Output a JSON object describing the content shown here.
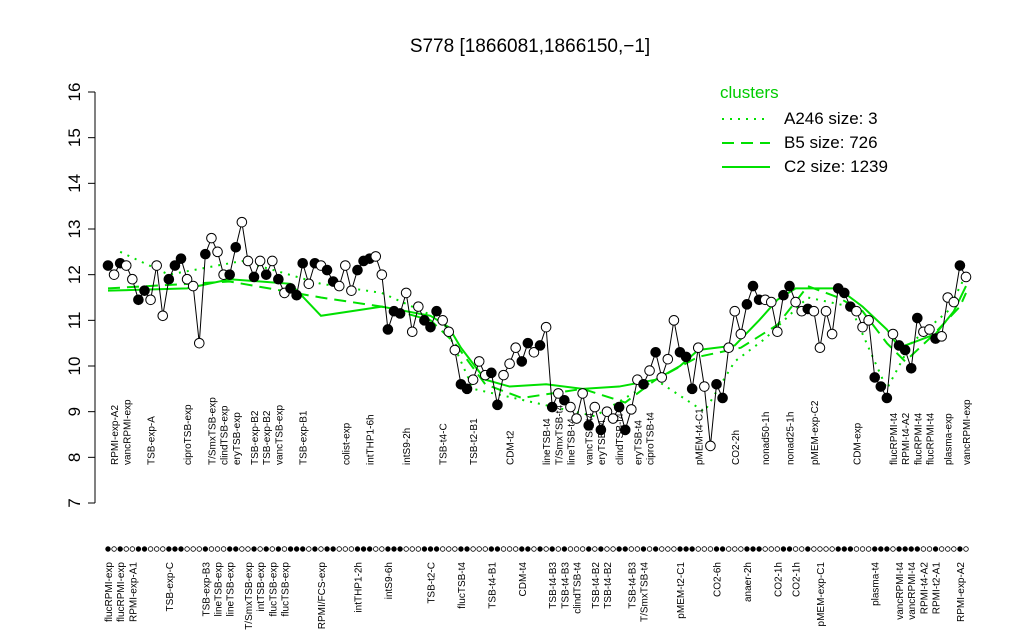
{
  "chart_data": {
    "type": "line",
    "title": "S778 [1866081,1866150,−1]",
    "ylim": [
      7,
      16
    ],
    "yticks": [
      7,
      8,
      9,
      10,
      11,
      12,
      13,
      14,
      15,
      16
    ],
    "categories": [
      "flucRPMI-exp",
      "RPMI-exp-A2",
      "flucRPMI-exp",
      "vancRPMI-exp",
      "RPMI-exp-A1",
      null,
      null,
      "TSB-exp-A",
      null,
      null,
      "TSB-exp-C",
      null,
      null,
      "ciproTSB-exp",
      null,
      null,
      "TSB-exp-B3",
      "T/SmxTSB-exp",
      "lineTSB-exp",
      "clindTSB-exp",
      "lineTSB-exp",
      "eryTSB-exp",
      null,
      "T/SmxTSB-exp",
      "TSB-exp-B2",
      "intTSB-exp",
      "TSB-exp-B2",
      "flucTSB-exp",
      "vancTSB-exp",
      "flucTSB-exp",
      null,
      null,
      "TSB-exp-B1",
      null,
      null,
      "RPMI/FCS-exp",
      null,
      null,
      null,
      "colist-exp",
      null,
      "intTHP1-2h",
      null,
      "intTHP1-6h",
      null,
      null,
      "intS9-6h",
      null,
      null,
      "intS9-2h",
      null,
      null,
      null,
      "TSB-t2-C",
      null,
      "TSB-t4-C",
      null,
      null,
      "flucTSB-t4",
      null,
      "TSB-t2-B1",
      null,
      null,
      "TSB-t4-B1",
      null,
      null,
      "CDM-t2",
      null,
      "CDM-t4",
      null,
      null,
      null,
      "lineTSB-t4",
      "TSB-t4-B3",
      "T/SmxTSB-t4",
      "TSB-t4-B3",
      "lineTSB-t4",
      "clindTSB-t4",
      null,
      "vancTSB-t4",
      "TSB-t4-B2",
      "eryTSB-t4",
      "TSB-t4-B2",
      null,
      "clindTSB-t4",
      null,
      "TSB-t4-B3",
      "eryTSB-t4",
      "T/SmxTSB-t4",
      "ciproTSB-t4",
      null,
      null,
      null,
      null,
      "pMEM-t2-C1",
      null,
      null,
      "pMEM-t4-C1",
      null,
      null,
      "CO2-6h",
      null,
      null,
      "CO2-2h",
      null,
      "anaer-2h",
      null,
      null,
      "nonad50-1h",
      null,
      "CO2-1h",
      null,
      "nonad25-1h",
      "CO2-1h",
      null,
      null,
      "pMEM-exp-C2",
      "pMEM-exp-C1",
      null,
      null,
      null,
      null,
      null,
      "CDM-exp",
      null,
      null,
      "plasma-t4",
      null,
      null,
      "flucRPMI-t4",
      "vancRPMI-t4",
      "RPMI-t4-A2",
      "vancRPMI-t4",
      "flucRPMI-t4",
      "RPMI-t4-A2",
      "flucRPMI-t4",
      "RPMI-t2-A1",
      null,
      "plasma-exp",
      null,
      "RPMI-exp-A2",
      "vancRPMI-exp"
    ],
    "values": [
      12.2,
      12.0,
      12.25,
      12.2,
      11.9,
      11.45,
      11.65,
      11.45,
      12.2,
      11.1,
      11.9,
      12.2,
      12.35,
      11.9,
      11.75,
      10.5,
      12.45,
      12.8,
      12.5,
      12.0,
      12.0,
      12.6,
      13.15,
      12.3,
      11.95,
      12.3,
      12.0,
      12.3,
      11.9,
      11.6,
      11.7,
      11.55,
      12.25,
      11.8,
      12.25,
      12.2,
      12.1,
      11.85,
      11.75,
      12.2,
      11.65,
      12.1,
      12.3,
      12.35,
      12.4,
      12.0,
      10.8,
      11.2,
      11.15,
      11.6,
      10.75,
      11.3,
      11.0,
      10.85,
      11.2,
      11.0,
      10.75,
      10.35,
      9.6,
      9.5,
      9.7,
      10.1,
      9.8,
      9.85,
      9.15,
      9.8,
      10.05,
      10.4,
      10.1,
      10.5,
      10.3,
      10.45,
      10.85,
      9.1,
      9.4,
      9.25,
      9.1,
      8.85,
      9.4,
      8.7,
      9.1,
      8.6,
      9.0,
      8.85,
      9.1,
      8.6,
      9.05,
      9.7,
      9.6,
      9.9,
      10.3,
      9.75,
      10.15,
      11.0,
      10.3,
      10.2,
      9.5,
      10.4,
      9.55,
      8.25,
      9.6,
      9.3,
      10.4,
      11.2,
      10.7,
      11.35,
      11.75,
      11.45,
      11.45,
      11.4,
      10.75,
      11.55,
      11.75,
      11.4,
      11.2,
      11.25,
      11.2,
      10.4,
      11.2,
      10.7,
      11.7,
      11.6,
      11.3,
      11.2,
      10.85,
      11.0,
      9.75,
      9.55,
      9.3,
      10.7,
      10.45,
      10.35,
      9.95,
      11.05,
      10.75,
      10.8,
      10.6,
      10.65,
      11.5,
      11.4,
      12.2,
      11.95
    ],
    "filled": [
      true,
      false,
      true,
      false,
      false,
      true,
      true,
      false,
      false,
      false,
      true,
      true,
      true,
      false,
      false,
      false,
      true,
      false,
      false,
      false,
      true,
      true,
      false,
      false,
      true,
      false,
      true,
      false,
      true,
      false,
      true,
      true,
      true,
      false,
      true,
      false,
      true,
      true,
      false,
      false,
      false,
      true,
      true,
      true,
      false,
      false,
      true,
      true,
      true,
      false,
      false,
      false,
      true,
      true,
      true,
      false,
      false,
      false,
      true,
      true,
      false,
      false,
      false,
      true,
      true,
      false,
      false,
      false,
      true,
      true,
      false,
      true,
      false,
      true,
      false,
      true,
      false,
      false,
      false,
      true,
      false,
      true,
      false,
      false,
      true,
      true,
      false,
      false,
      true,
      false,
      true,
      false,
      false,
      false,
      true,
      true,
      true,
      false,
      false,
      false,
      true,
      true,
      false,
      false,
      false,
      true,
      true,
      true,
      false,
      false,
      false,
      true,
      true,
      false,
      false,
      true,
      false,
      false,
      false,
      false,
      true,
      true,
      true,
      false,
      false,
      false,
      true,
      true,
      true,
      false,
      true,
      true,
      true,
      true,
      false,
      false,
      true,
      false,
      false,
      false,
      true,
      false
    ],
    "line_color": "#000000",
    "legend_title": "clusters",
    "legend_title_color": "#00cc00",
    "legend": "top-right",
    "series": [
      {
        "name": "A246 size: 3",
        "color": "#00e000",
        "dash": "dotted",
        "x": [
          2,
          10,
          22,
          35,
          45,
          55,
          60,
          70,
          80,
          90,
          98,
          103,
          108,
          115,
          122,
          128,
          132,
          138,
          141
        ],
        "values": [
          12.5,
          12.0,
          12.3,
          11.8,
          11.6,
          11.0,
          9.5,
          9.2,
          8.9,
          9.7,
          9.0,
          10.1,
          10.6,
          11.5,
          11.3,
          9.5,
          10.5,
          11.2,
          12.0
        ]
      },
      {
        "name": "B5 size: 726",
        "color": "#00e000",
        "dash": "dashed",
        "x": [
          0,
          20,
          35,
          45,
          53,
          57,
          62,
          68,
          78,
          85,
          90,
          97,
          104,
          110,
          115,
          120,
          124,
          128,
          131,
          135,
          140,
          141
        ],
        "values": [
          11.7,
          11.85,
          11.5,
          11.3,
          11.0,
          10.5,
          9.6,
          9.3,
          9.5,
          9.2,
          9.7,
          10.2,
          10.4,
          10.9,
          11.75,
          11.5,
          11.2,
          10.5,
          10.1,
          10.6,
          11.3,
          11.6
        ]
      },
      {
        "name": "C2 size: 1239",
        "color": "#00e000",
        "dash": "solid",
        "x": [
          0,
          13,
          20,
          30,
          35,
          45,
          53,
          56,
          58,
          62,
          66,
          72,
          78,
          84,
          90,
          94,
          97,
          103,
          107,
          110,
          113,
          120,
          124,
          128,
          130,
          133,
          136,
          139,
          141
        ],
        "values": [
          11.65,
          11.7,
          11.9,
          11.8,
          11.1,
          11.3,
          11.1,
          10.85,
          10.4,
          9.7,
          9.55,
          9.6,
          9.5,
          9.55,
          9.7,
          10.0,
          10.35,
          10.45,
          11.0,
          11.45,
          11.7,
          11.7,
          11.3,
          10.8,
          10.4,
          10.55,
          10.7,
          11.2,
          11.75
        ]
      }
    ]
  }
}
